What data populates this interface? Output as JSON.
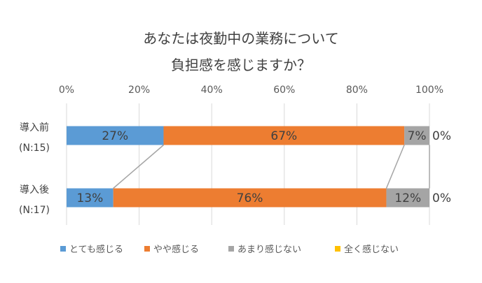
{
  "chart_data": {
    "type": "bar",
    "orientation": "horizontal",
    "stacked": true,
    "percent_stacked": true,
    "title_lines": [
      "あなたは夜勤中の業務について",
      "負担感を感じますか？"
    ],
    "xlim": [
      0,
      100
    ],
    "x_ticks": [
      "0%",
      "20%",
      "40%",
      "60%",
      "80%",
      "100%"
    ],
    "grid": "vertical",
    "legend_position": "bottom",
    "categories": [
      {
        "label": "導入前",
        "sublabel": "(N:15)"
      },
      {
        "label": "導入後",
        "sublabel": "(N:17)"
      }
    ],
    "series": [
      {
        "name": "とても感じる",
        "color": "#5B9BD5",
        "values": [
          27,
          13
        ],
        "labels": [
          "27%",
          "13%"
        ]
      },
      {
        "name": "やや感じる",
        "color": "#ED7D31",
        "values": [
          67,
          76
        ],
        "labels": [
          "67%",
          "76%"
        ]
      },
      {
        "name": "あまり感じない",
        "color": "#A5A5A5",
        "values": [
          7,
          12
        ],
        "labels": [
          "7%",
          "12%"
        ]
      },
      {
        "name": "全く感じない",
        "color": "#FFC000",
        "values": [
          0,
          0
        ],
        "labels": [
          "0%",
          "0%"
        ]
      }
    ],
    "series_lines": true
  }
}
